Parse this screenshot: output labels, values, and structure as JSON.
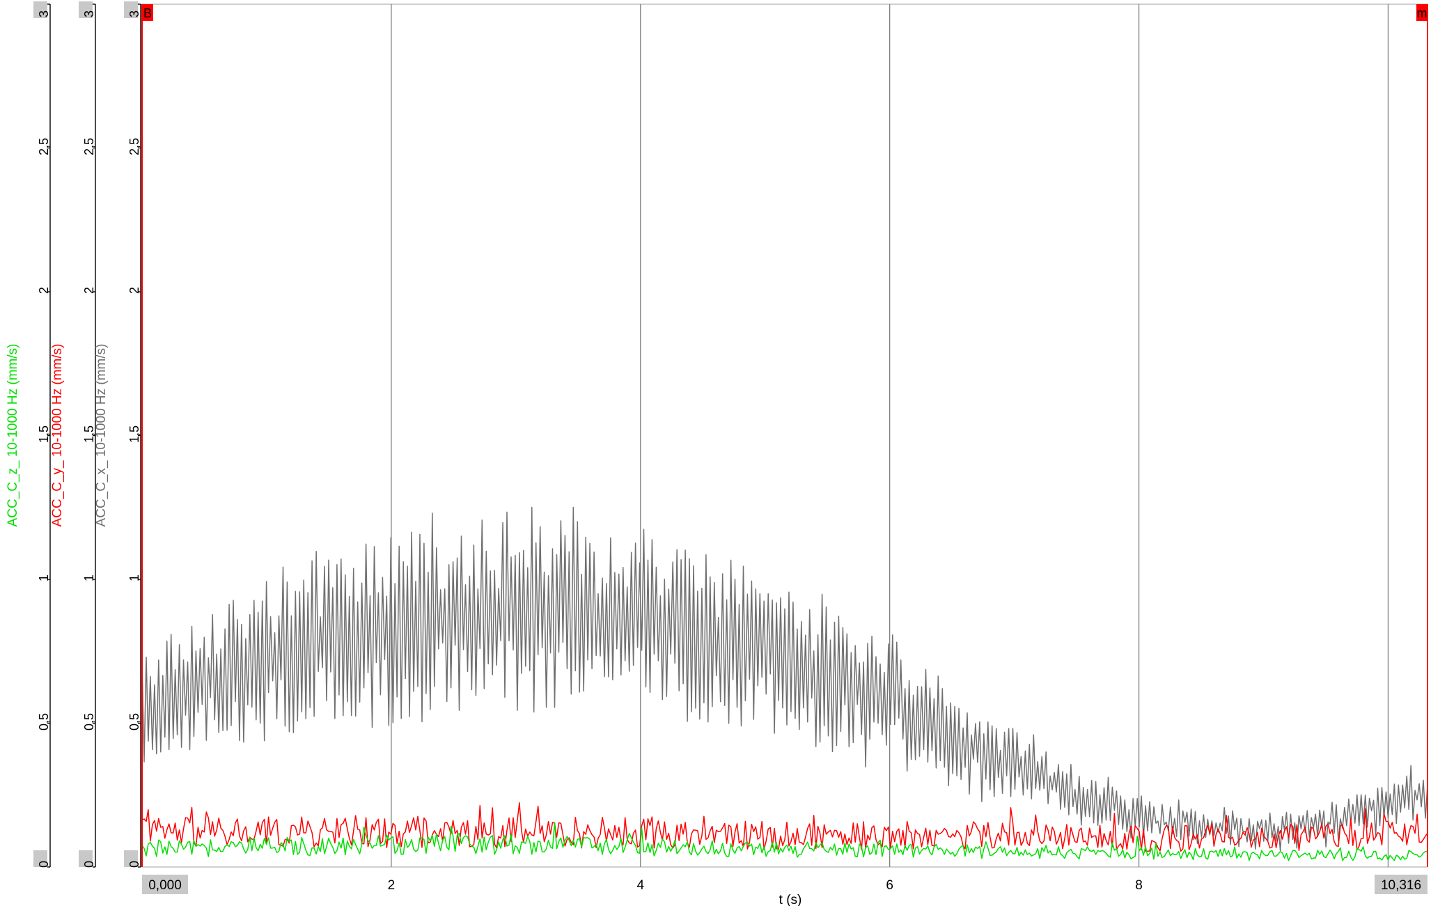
{
  "chart_data": {
    "type": "line",
    "title": "",
    "xlabel": "t (s)",
    "xlim": [
      0,
      10.316
    ],
    "x_ticks": [
      0,
      2,
      4,
      6,
      8,
      10
    ],
    "x_tick_labels": [
      "",
      "2",
      "4",
      "6",
      "8",
      ""
    ],
    "cursor_left_label": "0,000",
    "cursor_right_label": "10,316",
    "cursor_left_marker": "B",
    "cursor_right_marker": "m",
    "ylim": [
      0,
      3
    ],
    "y_ticks": [
      0,
      0.5,
      1,
      1.5,
      2,
      2.5,
      3
    ],
    "y_tick_labels": [
      "0",
      "0,5",
      "1",
      "1,5",
      "2",
      "2,5",
      "3"
    ],
    "grid": "vertical",
    "axes": [
      {
        "label": "ACC_C_z_ 10-1000 Hz (mm/s)",
        "color": "#00e000"
      },
      {
        "label": "ACC_C_y_ 10-1000 Hz (mm/s)",
        "color": "#ff0000"
      },
      {
        "label": "ACC_C_x_ 10-1000 Hz (mm/s)",
        "color": "#707070"
      }
    ],
    "series": [
      {
        "name": "ACC_C_x_ 10-1000 Hz (mm/s)",
        "color": "#707070",
        "x": [
          0,
          0.2,
          0.4,
          0.6,
          0.8,
          1.0,
          1.2,
          1.4,
          1.6,
          1.8,
          2.0,
          2.2,
          2.4,
          2.6,
          2.8,
          3.0,
          3.2,
          3.4,
          3.6,
          3.8,
          4.0,
          4.2,
          4.4,
          4.6,
          4.8,
          5.0,
          5.2,
          5.4,
          5.6,
          5.8,
          6.0,
          6.2,
          6.4,
          6.6,
          6.8,
          7.0,
          7.2,
          7.4,
          7.6,
          7.8,
          8.0,
          8.2,
          8.4,
          8.6,
          8.8,
          9.0,
          9.2,
          9.4,
          9.6,
          9.8,
          10.0,
          10.2,
          10.316
        ],
        "values": [
          0.55,
          0.58,
          0.62,
          0.66,
          0.69,
          0.72,
          0.75,
          0.77,
          0.79,
          0.81,
          0.84,
          0.86,
          0.87,
          0.88,
          0.89,
          0.89,
          0.89,
          0.88,
          0.87,
          0.86,
          0.85,
          0.83,
          0.81,
          0.79,
          0.77,
          0.74,
          0.71,
          0.68,
          0.65,
          0.62,
          0.58,
          0.53,
          0.48,
          0.43,
          0.39,
          0.35,
          0.31,
          0.27,
          0.24,
          0.21,
          0.18,
          0.16,
          0.15,
          0.14,
          0.13,
          0.13,
          0.14,
          0.15,
          0.17,
          0.19,
          0.22,
          0.24,
          0.22
        ]
      },
      {
        "name": "ACC_C_y_ 10-1000 Hz (mm/s)",
        "color": "#ff0000",
        "x": [
          0,
          1,
          2,
          3,
          4,
          5,
          6,
          7,
          8,
          9,
          10,
          10.316
        ],
        "values": [
          0.12,
          0.12,
          0.12,
          0.12,
          0.12,
          0.11,
          0.11,
          0.11,
          0.1,
          0.1,
          0.11,
          0.11
        ]
      },
      {
        "name": "ACC_C_z_ 10-1000 Hz (mm/s)",
        "color": "#00e000",
        "x": [
          0,
          1,
          2,
          3,
          4,
          5,
          6,
          7,
          8,
          9,
          10,
          10.316
        ],
        "values": [
          0.06,
          0.07,
          0.08,
          0.08,
          0.07,
          0.06,
          0.06,
          0.05,
          0.05,
          0.04,
          0.04,
          0.04
        ]
      }
    ]
  }
}
